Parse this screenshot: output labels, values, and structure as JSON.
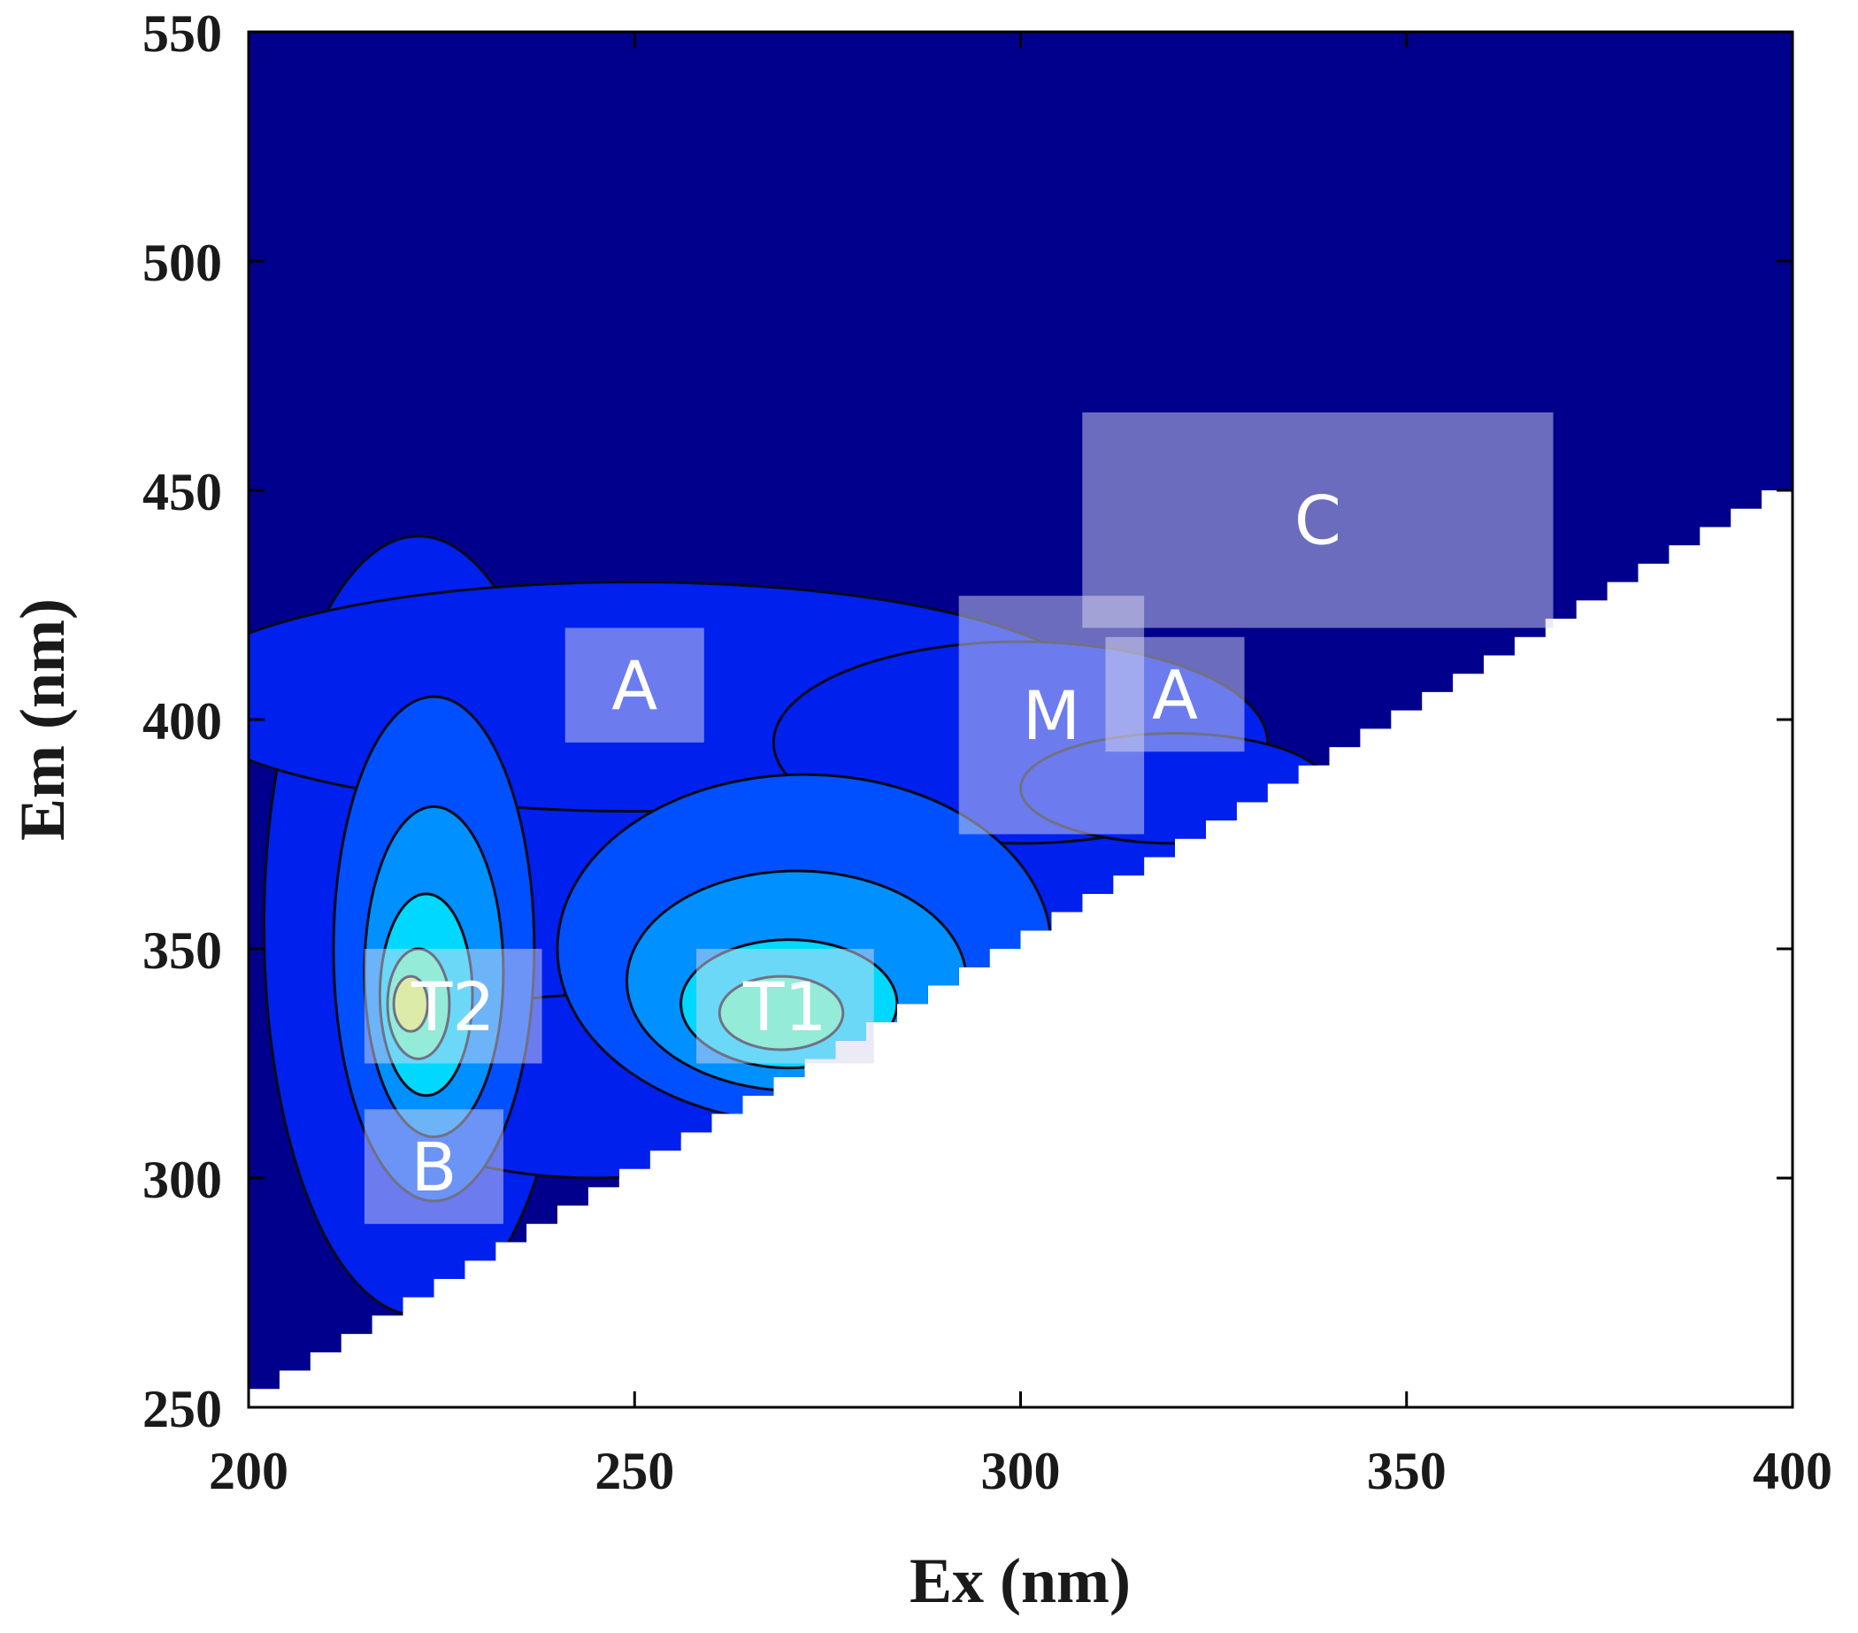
{
  "chart_data": {
    "type": "contour",
    "title": "",
    "xlabel": "Ex (nm)",
    "ylabel": "Em (nm)",
    "xlim": [
      200,
      400
    ],
    "ylim": [
      250,
      550
    ],
    "xticks": [
      "200",
      "250",
      "300",
      "350",
      "400"
    ],
    "yticks": [
      "250",
      "300",
      "350",
      "400",
      "450",
      "500",
      "550"
    ],
    "grid": false,
    "colormap": "jet",
    "background_color": "#00008c",
    "masked_region": "Em < Ex + 50 (Rayleigh scatter region left blank)",
    "peaks": [
      {
        "ex": 222,
        "em": 338,
        "level": 0.72
      },
      {
        "ex": 270,
        "em": 334,
        "level": 0.58
      }
    ],
    "regions": [
      {
        "label": "T2",
        "ex": [
          215,
          238
        ],
        "em": [
          325,
          350
        ]
      },
      {
        "label": "B",
        "ex": [
          215,
          233
        ],
        "em": [
          290,
          315
        ]
      },
      {
        "label": "T1",
        "ex": [
          258,
          281
        ],
        "em": [
          325,
          350
        ]
      },
      {
        "label": "A",
        "ex": [
          241,
          259
        ],
        "em": [
          395,
          420
        ]
      },
      {
        "label": "M",
        "ex": [
          292,
          316
        ],
        "em": [
          375,
          427
        ]
      },
      {
        "label": "A",
        "ex": [
          311,
          329
        ],
        "em": [
          393,
          418
        ]
      },
      {
        "label": "C",
        "ex": [
          308,
          369
        ],
        "em": [
          420,
          467
        ]
      }
    ]
  }
}
